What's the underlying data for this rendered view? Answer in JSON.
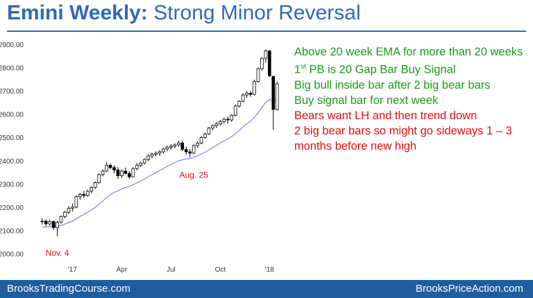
{
  "title": {
    "bold": "Emini Weekly:",
    "rest": " Strong Minor Reversal"
  },
  "notes": [
    {
      "text": "Above 20 week EMA for more than 20 weeks",
      "color": "#1a9a1a"
    },
    {
      "text": "1st PB is 20 Gap Bar Buy Signal",
      "color": "#1a9a1a"
    },
    {
      "text": "Big bull inside bar after 2 big bear bars",
      "color": "#1a9a1a"
    },
    {
      "text": "Buy signal bar for next week",
      "color": "#1a9a1a"
    },
    {
      "text": "Bears want LH and then trend down",
      "color": "#e01010"
    },
    {
      "text": "2 big bear bars so might go sideways 1 – 3",
      "color": "#e01010"
    },
    {
      "text": "months before new high",
      "color": "#e01010"
    }
  ],
  "footer": {
    "left": "BrooksTradingCourse.com",
    "right": "BrooksPriceAction.com"
  },
  "chart_data": {
    "type": "candlestick",
    "ylim": [
      2000,
      2900
    ],
    "yticks": [
      "2000.00",
      "2100.00",
      "2200.00",
      "2300.00",
      "2400.00",
      "2500.00",
      "2600.00",
      "2700.00",
      "2800.00",
      "2900.00"
    ],
    "xticks": [
      {
        "label": "'17",
        "index": 8
      },
      {
        "label": "Apr",
        "index": 21
      },
      {
        "label": "Jul",
        "index": 34
      },
      {
        "label": "Oct",
        "index": 47
      },
      {
        "label": "'18",
        "index": 60
      }
    ],
    "annotations": [
      {
        "text": "Nov. 4",
        "index": 4,
        "price": 2075,
        "position": "below",
        "color": "#e01010"
      },
      {
        "text": "Aug. 25",
        "index": 40,
        "price": 2410,
        "position": "below",
        "color": "#e01010"
      }
    ],
    "ema_label": "20 week EMA",
    "ema_color": "#6a6af0",
    "bars": [
      [
        2138,
        2152,
        2125,
        2140
      ],
      [
        2140,
        2148,
        2118,
        2128
      ],
      [
        2128,
        2146,
        2120,
        2138
      ],
      [
        2138,
        2142,
        2102,
        2112
      ],
      [
        2112,
        2140,
        2075,
        2135
      ],
      [
        2135,
        2165,
        2130,
        2160
      ],
      [
        2160,
        2185,
        2152,
        2178
      ],
      [
        2178,
        2205,
        2170,
        2195
      ],
      [
        2195,
        2215,
        2182,
        2200
      ],
      [
        2200,
        2250,
        2195,
        2245
      ],
      [
        2245,
        2262,
        2232,
        2255
      ],
      [
        2255,
        2270,
        2240,
        2250
      ],
      [
        2250,
        2275,
        2245,
        2268
      ],
      [
        2268,
        2290,
        2260,
        2285
      ],
      [
        2285,
        2310,
        2278,
        2305
      ],
      [
        2305,
        2345,
        2300,
        2340
      ],
      [
        2340,
        2362,
        2332,
        2355
      ],
      [
        2355,
        2395,
        2350,
        2380
      ],
      [
        2380,
        2388,
        2362,
        2370
      ],
      [
        2370,
        2380,
        2345,
        2360
      ],
      [
        2360,
        2372,
        2322,
        2335
      ],
      [
        2335,
        2362,
        2325,
        2355
      ],
      [
        2355,
        2370,
        2340,
        2345
      ],
      [
        2345,
        2355,
        2320,
        2330
      ],
      [
        2330,
        2372,
        2328,
        2366
      ],
      [
        2366,
        2390,
        2358,
        2380
      ],
      [
        2380,
        2395,
        2372,
        2390
      ],
      [
        2390,
        2410,
        2384,
        2405
      ],
      [
        2405,
        2428,
        2398,
        2420
      ],
      [
        2420,
        2435,
        2410,
        2428
      ],
      [
        2428,
        2440,
        2418,
        2432
      ],
      [
        2432,
        2445,
        2420,
        2438
      ],
      [
        2438,
        2455,
        2430,
        2450
      ],
      [
        2450,
        2465,
        2440,
        2458
      ],
      [
        2458,
        2470,
        2448,
        2462
      ],
      [
        2462,
        2475,
        2452,
        2468
      ],
      [
        2468,
        2485,
        2460,
        2476
      ],
      [
        2476,
        2484,
        2440,
        2448
      ],
      [
        2448,
        2460,
        2425,
        2438
      ],
      [
        2438,
        2450,
        2415,
        2432
      ],
      [
        2432,
        2470,
        2428,
        2465
      ],
      [
        2465,
        2482,
        2455,
        2475
      ],
      [
        2475,
        2505,
        2470,
        2500
      ],
      [
        2500,
        2520,
        2494,
        2515
      ],
      [
        2515,
        2545,
        2510,
        2540
      ],
      [
        2540,
        2555,
        2530,
        2550
      ],
      [
        2550,
        2565,
        2540,
        2558
      ],
      [
        2558,
        2575,
        2550,
        2568
      ],
      [
        2568,
        2585,
        2560,
        2578
      ],
      [
        2578,
        2590,
        2560,
        2575
      ],
      [
        2575,
        2600,
        2568,
        2595
      ],
      [
        2595,
        2640,
        2590,
        2635
      ],
      [
        2635,
        2660,
        2628,
        2655
      ],
      [
        2655,
        2690,
        2650,
        2682
      ],
      [
        2682,
        2700,
        2670,
        2690
      ],
      [
        2690,
        2700,
        2675,
        2685
      ],
      [
        2685,
        2748,
        2680,
        2740
      ],
      [
        2740,
        2800,
        2735,
        2795
      ],
      [
        2795,
        2845,
        2788,
        2840
      ],
      [
        2840,
        2878,
        2820,
        2872
      ],
      [
        2872,
        2875,
        2760,
        2765
      ],
      [
        2762,
        2765,
        2532,
        2620
      ],
      [
        2620,
        2740,
        2615,
        2730
      ]
    ]
  }
}
